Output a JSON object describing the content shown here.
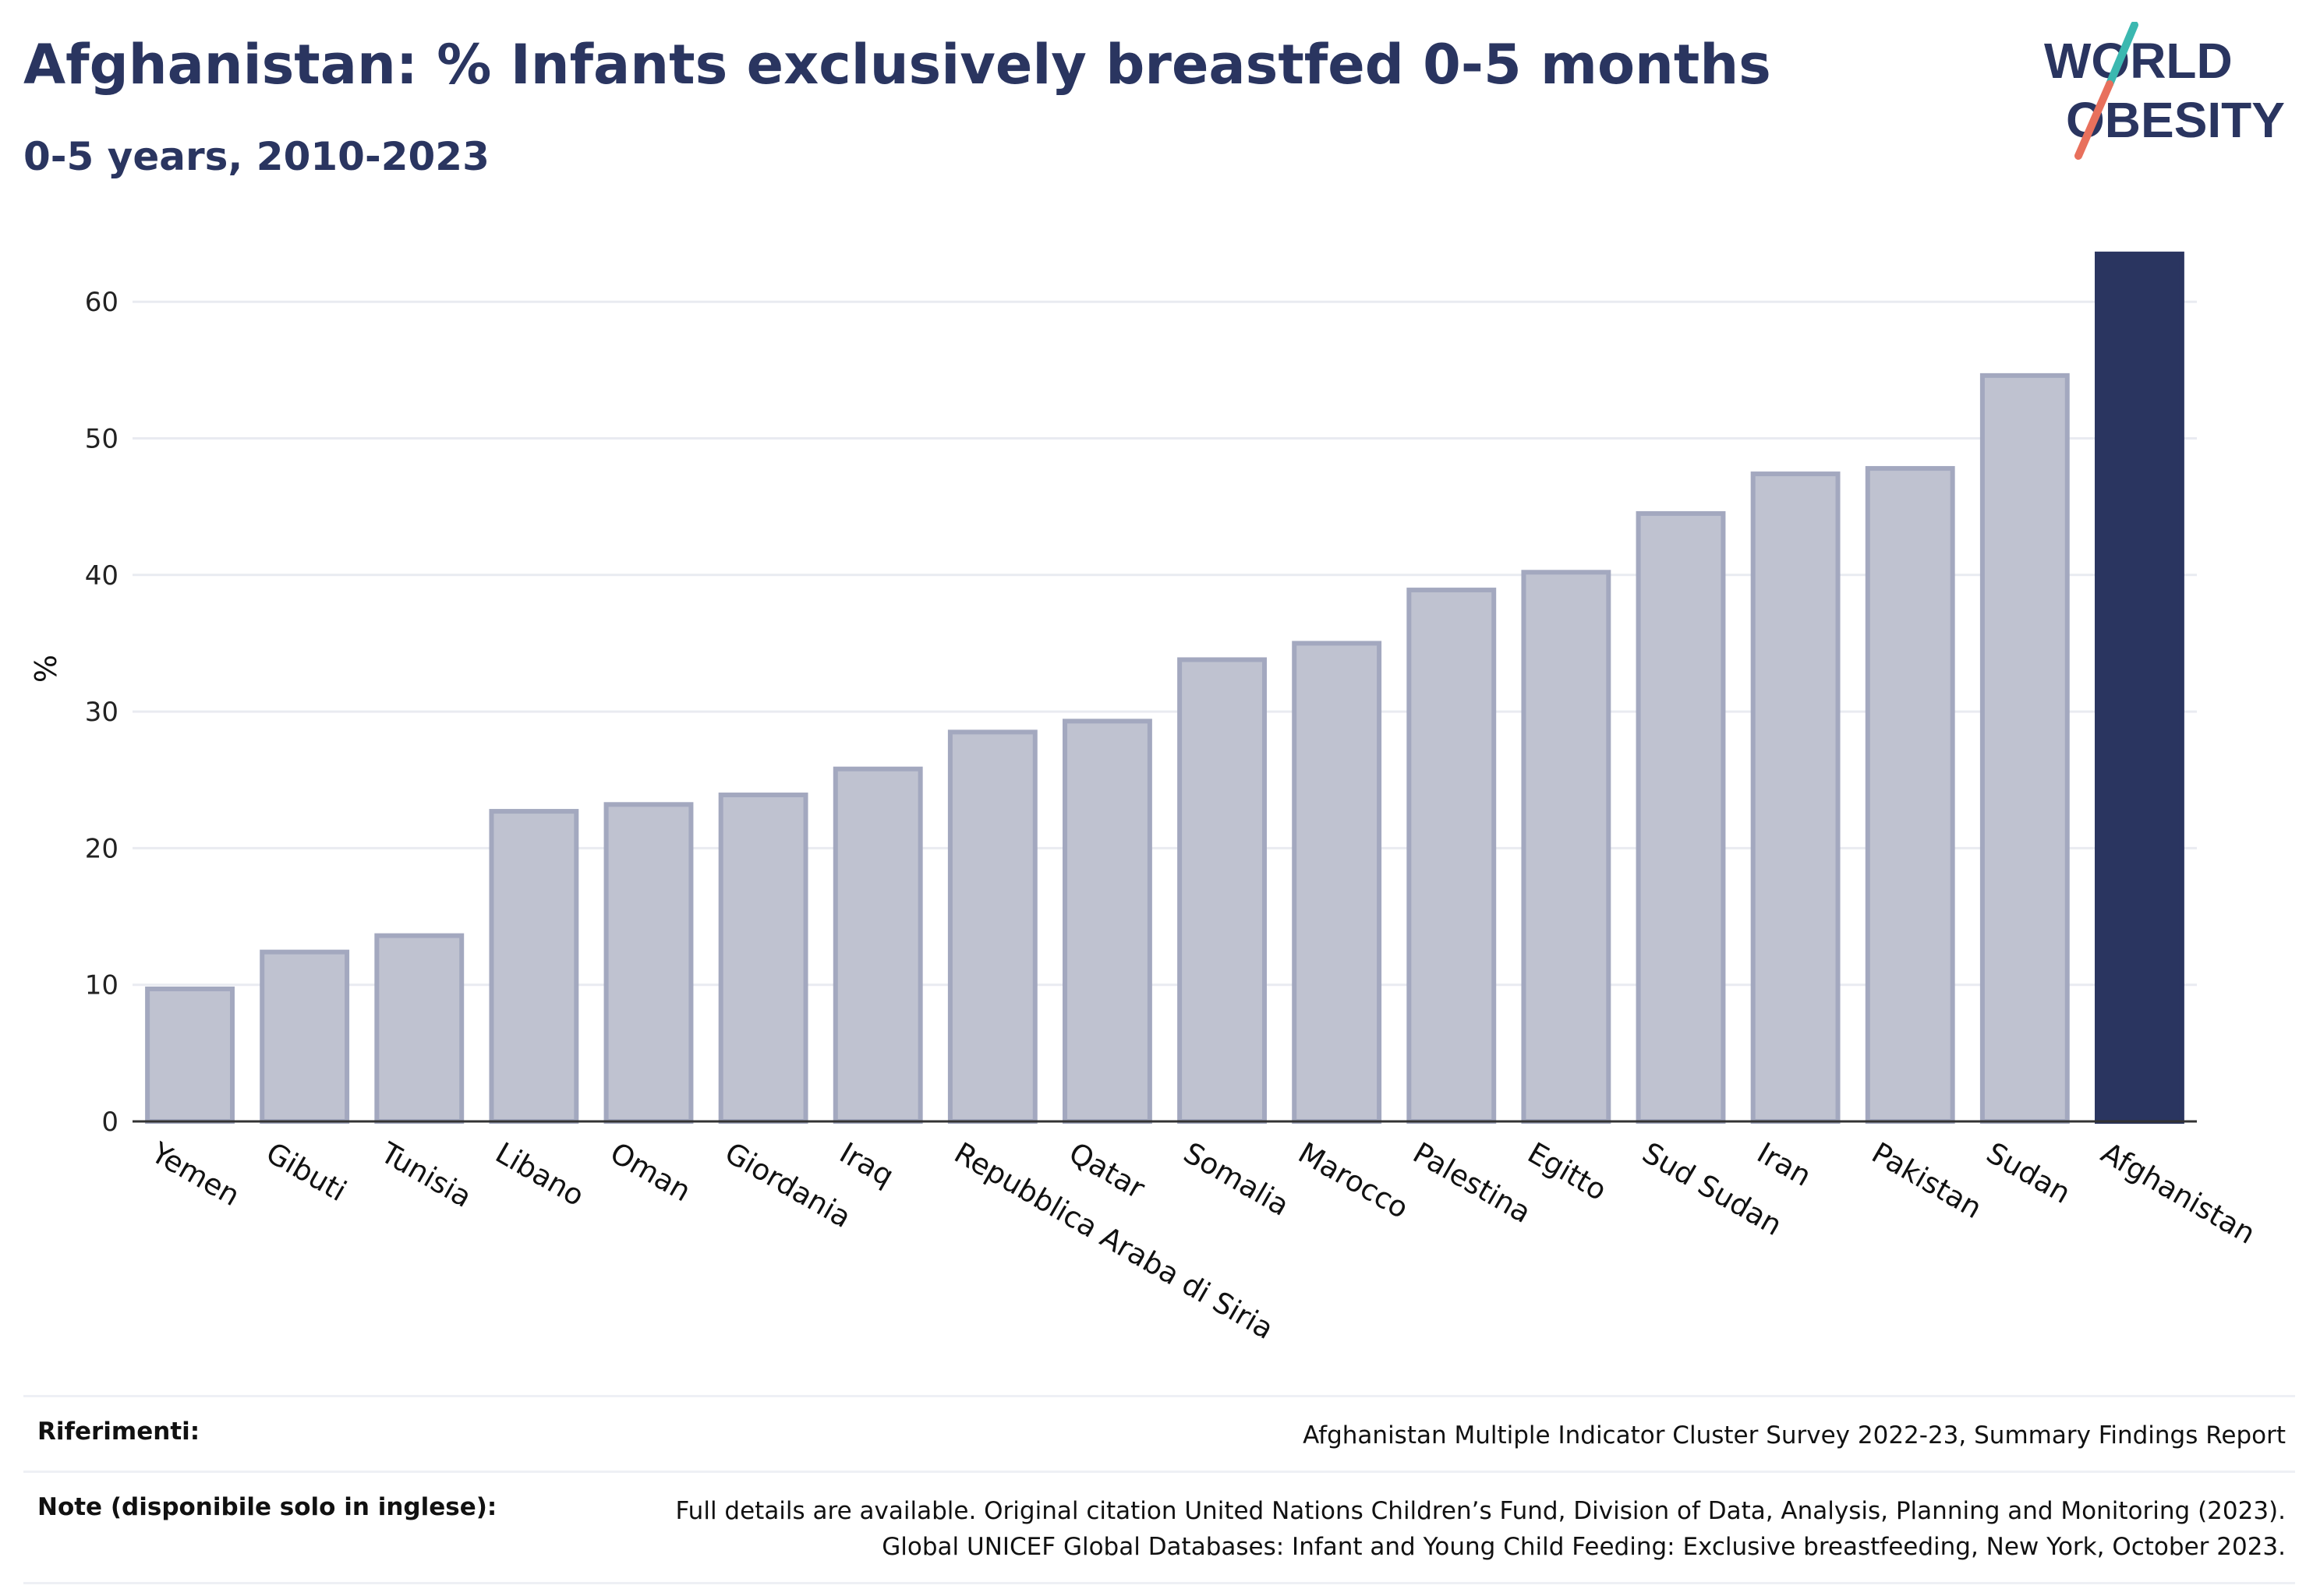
{
  "title": "Afghanistan: % Infants exclusively breastfed 0-5 months",
  "subtitle": "0-5 years, 2010-2023",
  "logo": {
    "line1": "WORLD",
    "line2": "OBESITY",
    "slash_top_color": "#3bb8b0",
    "slash_bottom_color": "#e8705c"
  },
  "colors": {
    "highlight": "#2a3560",
    "bar_fill": "#bfc2d0",
    "bar_stroke": "#a3a8bf",
    "grid": "#e9ebf1",
    "axis": "#333333",
    "text": "#2a3560"
  },
  "chart_data": {
    "type": "bar",
    "title": "Afghanistan: % Infants exclusively breastfed 0-5 months",
    "subtitle": "0-5 years, 2010-2023",
    "ylabel": "%",
    "xlabel": "",
    "ylim": [
      0,
      65
    ],
    "yticks": [
      0,
      10,
      20,
      30,
      40,
      50,
      60
    ],
    "grid": true,
    "highlight": "Afghanistan",
    "categories": [
      "Yemen",
      "Gibuti",
      "Tunisia",
      "Libano",
      "Oman",
      "Giordania",
      "Iraq",
      "Repubblica Araba di Siria",
      "Qatar",
      "Somalia",
      "Marocco",
      "Palestina",
      "Egitto",
      "Sud Sudan",
      "Iran",
      "Pakistan",
      "Sudan",
      "Afghanistan"
    ],
    "values": [
      9.7,
      12.4,
      13.6,
      22.7,
      23.2,
      23.9,
      25.8,
      28.5,
      29.3,
      33.8,
      35.0,
      38.9,
      40.2,
      44.5,
      47.4,
      47.8,
      54.6,
      63.5
    ]
  },
  "footer": {
    "references_label": "Riferimenti:",
    "references_text": "Afghanistan Multiple Indicator Cluster Survey 2022-23, Summary Findings Report",
    "notes_label": "Note (disponibile solo in inglese):",
    "notes_line1": "Full details are available. Original citation United Nations Children’s Fund, Division of Data, Analysis, Planning and Monitoring (2023).",
    "notes_line2": "Global UNICEF Global Databases: Infant and Young Child Feeding: Exclusive breastfeeding, New York, October 2023."
  }
}
